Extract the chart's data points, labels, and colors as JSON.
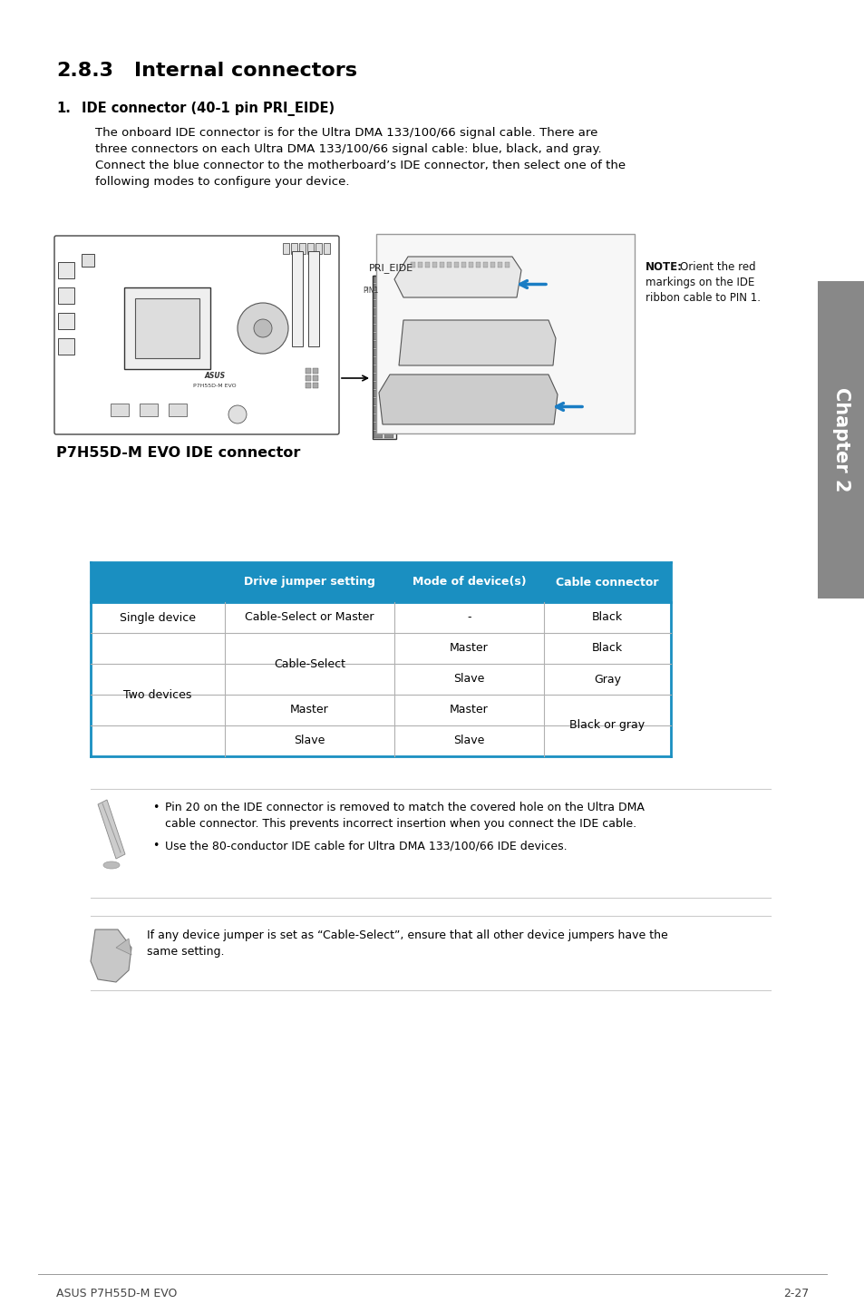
{
  "title_num": "2.8.3",
  "title_text": "Internal connectors",
  "section_num": "1.",
  "section_title": "IDE connector (40-1 pin PRI_EIDE)",
  "body_text_lines": [
    "The onboard IDE connector is for the Ultra DMA 133/100/66 signal cable. There are",
    "three connectors on each Ultra DMA 133/100/66 signal cable: blue, black, and gray.",
    "Connect the blue connector to the motherboard’s IDE connector, then select one of the",
    "following modes to configure your device."
  ],
  "connector_label_bold": "P7H55D-M EVO IDE connector",
  "pri_eide_label": "PRI_EIDE",
  "pin1_label": "PIN1",
  "note_bold": "NOTE:",
  "note_text": "Orient the red\nmarkings on the IDE\nribbon cable to PIN 1.",
  "table_header_bg": "#1a8fc1",
  "table_header_color": "#ffffff",
  "table_border_color": "#1a8fc1",
  "table_divider_color": "#b0b0b0",
  "table_headers": [
    "Drive jumper setting",
    "Mode of device(s)",
    "Cable connector"
  ],
  "note1_line1": "Pin 20 on the IDE connector is removed to match the covered hole on the Ultra DMA",
  "note1_line2": "cable connector. This prevents incorrect insertion when you connect the IDE cable.",
  "note1_line3": "Use the 80-conductor IDE cable for Ultra DMA 133/100/66 IDE devices.",
  "note2_text_line1": "If any device jumper is set as “Cable-Select”, ensure that all other device jumpers have the",
  "note2_text_line2": "same setting.",
  "footer_left": "ASUS P7H55D-M EVO",
  "footer_right": "2-27",
  "chapter_label": "Chapter 2",
  "bg_color": "#ffffff",
  "text_color": "#000000",
  "chapter_tab_color": "#888888",
  "line_color": "#cccccc"
}
